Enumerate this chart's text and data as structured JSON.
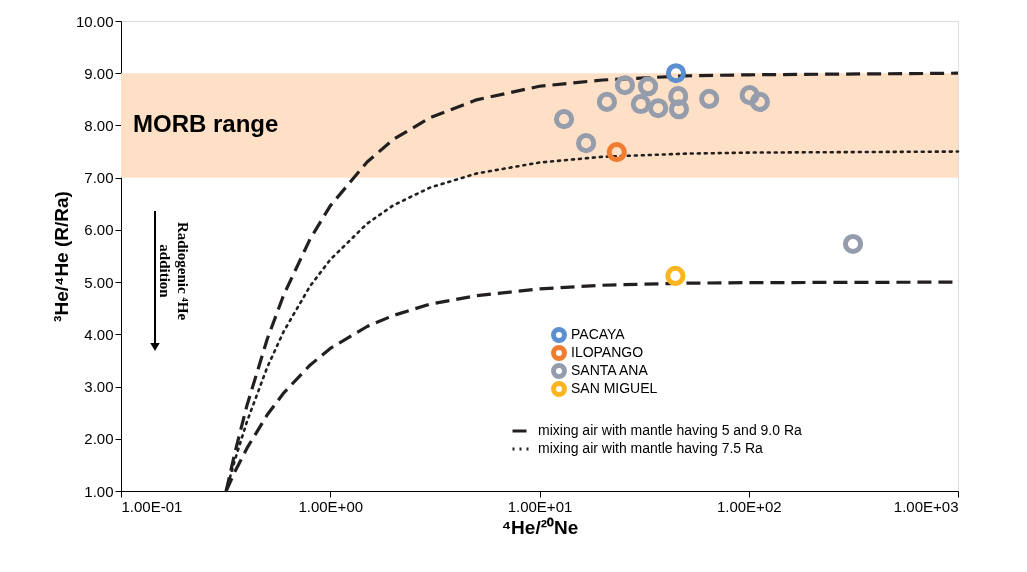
{
  "chart_data": {
    "type": "scatter",
    "xlabel": "⁴He/²⁰Ne",
    "ylabel": "³He/⁴He (R/Ra)",
    "log": "x",
    "xlim": [
      0.1,
      1000
    ],
    "ylim": [
      1,
      10
    ],
    "xticks": [
      {
        "value": 0.1,
        "label": "1.00E-01"
      },
      {
        "value": 1,
        "label": "1.00E+00"
      },
      {
        "value": 10,
        "label": "1.00E+01"
      },
      {
        "value": 100,
        "label": "1.00E+02"
      },
      {
        "value": 1000,
        "label": "1.00E+03"
      }
    ],
    "yticks": [
      {
        "value": 1,
        "label": "1.00"
      },
      {
        "value": 2,
        "label": "2.00"
      },
      {
        "value": 3,
        "label": "3.00"
      },
      {
        "value": 4,
        "label": "4.00"
      },
      {
        "value": 5,
        "label": "5.00"
      },
      {
        "value": 6,
        "label": "6.00"
      },
      {
        "value": 7,
        "label": "7.00"
      },
      {
        "value": 8,
        "label": "8.00"
      },
      {
        "value": 9,
        "label": "9.00"
      },
      {
        "value": 10,
        "label": "10.00"
      }
    ],
    "grid": false,
    "legend": "bottom right",
    "marker": "circle",
    "bands": [
      {
        "axis": "y",
        "from": 7,
        "to": 9,
        "label": "MORB range",
        "color": "#fde0c6"
      }
    ],
    "annotations": [
      "Radiogenic ⁴He addition"
    ],
    "series": [
      {
        "name": "mixing air with mantle having 5 and 9.0 Ra",
        "type": "line",
        "line_style": "dashed",
        "marker": "none",
        "color": "#231f20",
        "x": [
          0.318,
          0.35,
          0.4,
          0.5,
          0.6,
          0.8,
          1,
          1.5,
          2,
          3,
          5,
          10,
          20,
          50,
          100,
          1000
        ],
        "values": [
          1,
          1.73,
          2.64,
          3.91,
          4.76,
          5.82,
          6.46,
          7.3,
          7.73,
          8.15,
          8.49,
          8.75,
          8.87,
          8.95,
          8.97,
          9.0
        ]
      },
      {
        "type": "line",
        "line_style": "dashed",
        "marker": "none",
        "color": "#231f20",
        "x": [
          0.318,
          0.35,
          0.4,
          0.5,
          0.6,
          0.8,
          1,
          1.5,
          2,
          3,
          5,
          10,
          20,
          50,
          100,
          1000
        ],
        "values": [
          1,
          1.37,
          1.82,
          2.46,
          2.88,
          3.41,
          3.73,
          4.15,
          4.36,
          4.58,
          4.74,
          4.87,
          4.94,
          4.98,
          4.99,
          5.0
        ]
      },
      {
        "name": "mixing air with mantle having 7.5 Ra",
        "type": "line",
        "line_style": "dotted",
        "marker": "none",
        "color": "#231f20",
        "x": [
          0.318,
          0.35,
          0.4,
          0.5,
          0.6,
          0.8,
          1,
          1.5,
          2,
          3,
          5,
          10,
          20,
          50,
          100,
          1000
        ],
        "values": [
          1,
          1.59,
          2.33,
          3.37,
          4.06,
          4.92,
          5.43,
          6.12,
          6.47,
          6.81,
          7.08,
          7.29,
          7.4,
          7.46,
          7.48,
          7.5
        ]
      },
      {
        "name": "PACAYA",
        "color": "#5b8fd0",
        "x": [
          44.9
        ],
        "values": [
          9.0
        ]
      },
      {
        "name": "ILOPANGO",
        "color": "#ee7d31",
        "x": [
          23.4
        ],
        "values": [
          7.49
        ]
      },
      {
        "name": "SANTA ANA",
        "color": "#959cab",
        "x": [
          13.1,
          16.7,
          21.0,
          25.6,
          30.5,
          33.0,
          36.9,
          46.0,
          46.4,
          64.7,
          101,
          113,
          315
        ],
        "values": [
          8.12,
          7.66,
          8.45,
          8.77,
          8.41,
          8.75,
          8.33,
          8.56,
          8.31,
          8.51,
          8.58,
          8.45,
          5.73
        ]
      },
      {
        "name": "SAN MIGUEL",
        "color": "#fbb520",
        "x": [
          44.6
        ],
        "values": [
          5.12
        ]
      }
    ]
  }
}
